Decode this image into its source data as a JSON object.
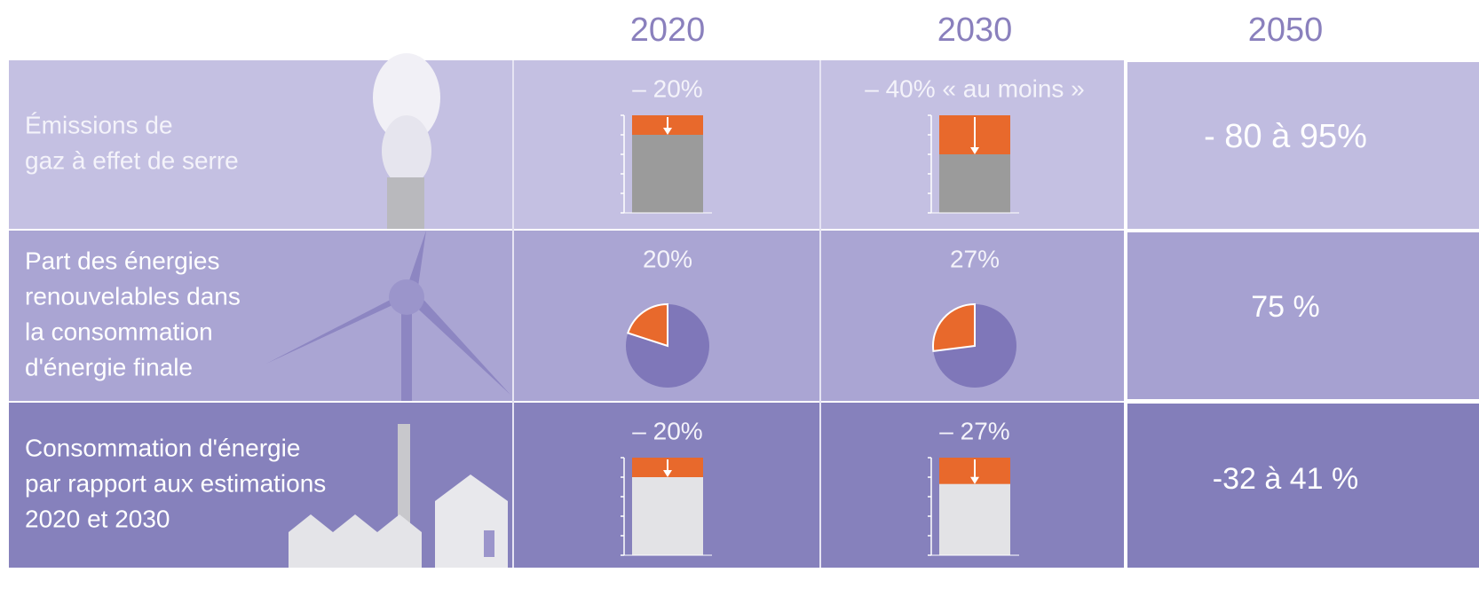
{
  "header": {
    "years": [
      "2020",
      "2030",
      "2050"
    ]
  },
  "rows": [
    {
      "label": [
        "Émissions de",
        "gaz à effet de serre"
      ],
      "chart": "bar",
      "cells": [
        {
          "text": "– 20%",
          "value": 20
        },
        {
          "text": "– 40% « au moins »",
          "value": 40
        }
      ],
      "target": "- 80 à 95%"
    },
    {
      "label": [
        "Part des énergies",
        "renouvelables dans",
        "la consommation",
        "d'énergie finale"
      ],
      "chart": "pie",
      "cells": [
        {
          "text": "20%",
          "value": 20
        },
        {
          "text": "27%",
          "value": 27
        }
      ],
      "target": "75 %"
    },
    {
      "label": [
        "Consommation d'énergie",
        "par rapport aux estimations",
        "2020 et 2030"
      ],
      "chart": "bar",
      "cells": [
        {
          "text": "– 20%",
          "value": 20
        },
        {
          "text": "– 27%",
          "value": 27
        }
      ],
      "target": "-32 à 41 %"
    }
  ]
}
